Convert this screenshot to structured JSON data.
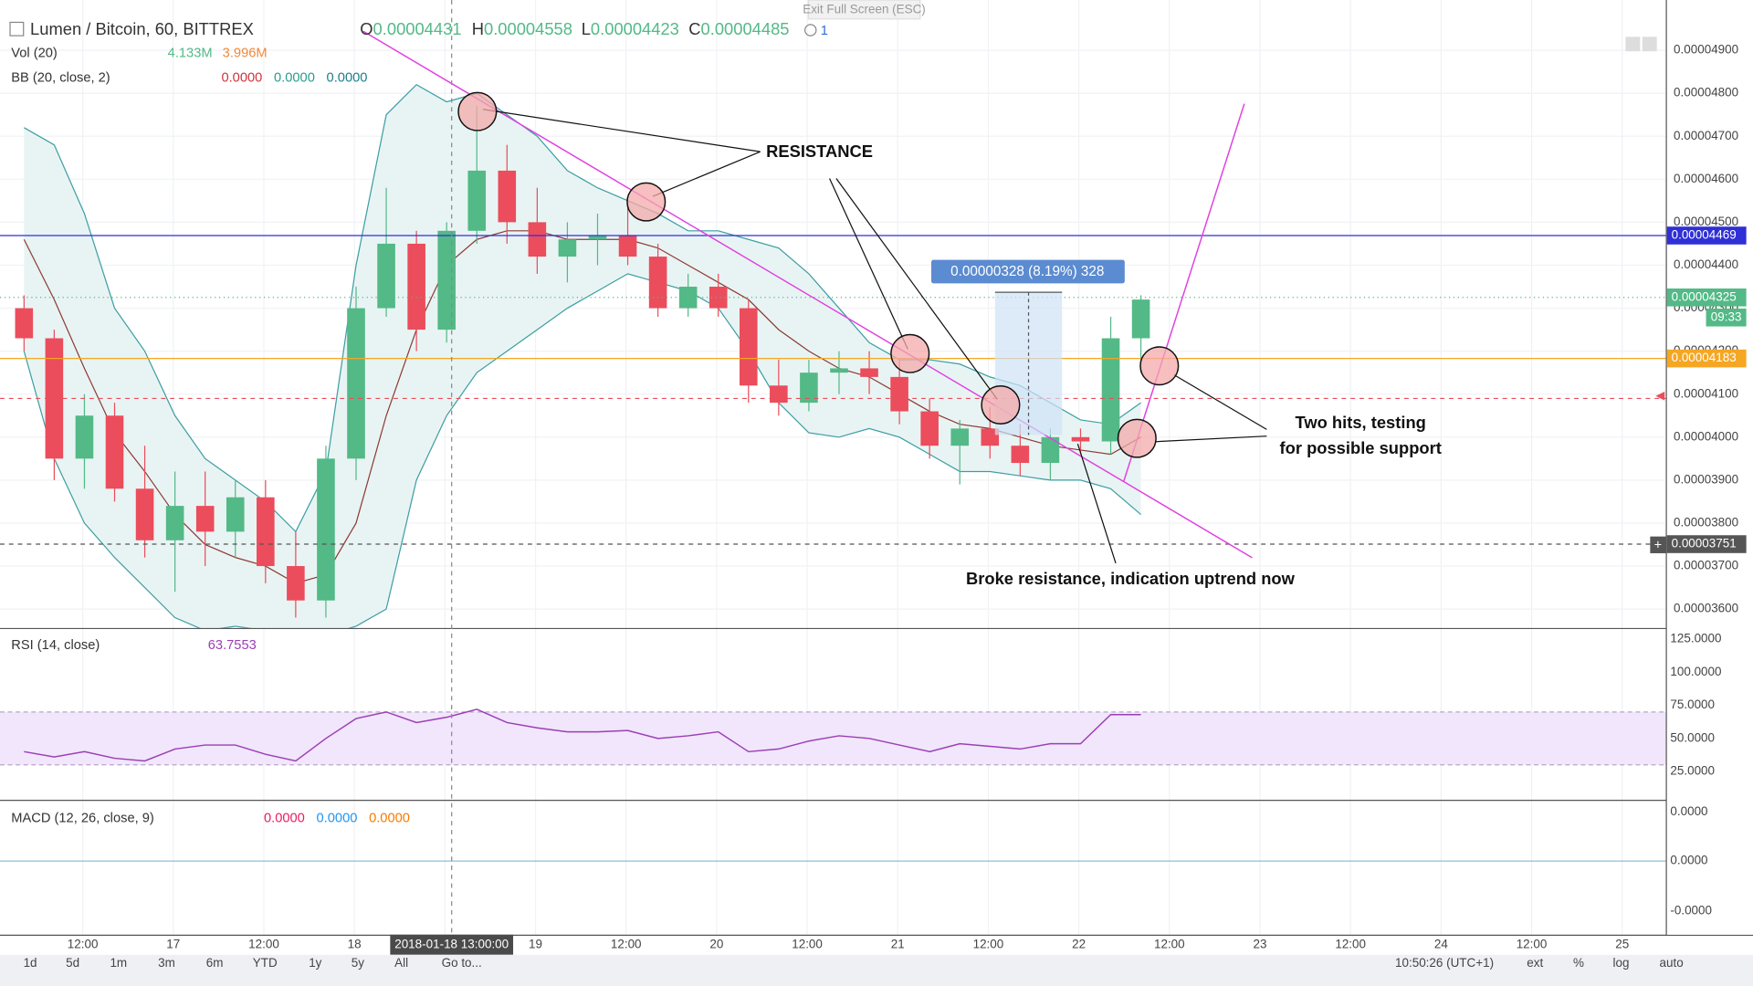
{
  "header": {
    "symbol": "Lumen / Bitcoin, 60, BITTREX",
    "ohlc": [
      [
        "O",
        "0.00004431"
      ],
      [
        "H",
        "0.00004558"
      ],
      [
        "L",
        "0.00004423"
      ],
      [
        "C",
        "0.00004485"
      ]
    ],
    "alert_count": "1",
    "exit_fullscreen": "Exit Full Screen (ESC)"
  },
  "indicators": {
    "vol": {
      "name": "Vol (20)",
      "values": [
        "4.133M",
        "3.996M"
      ]
    },
    "bb": {
      "name": "BB (20, close, 2)",
      "values": [
        "0.0000",
        "0.0000",
        "0.0000"
      ]
    },
    "rsi": {
      "name": "RSI (14, close)",
      "value": "63.7553"
    },
    "macd": {
      "name": "MACD (12, 26, close, 9)",
      "values": [
        "0.0000",
        "0.0000",
        "0.0000"
      ],
      "ticks": [
        "0.0000",
        "0.0000",
        "-0.0000"
      ]
    }
  },
  "chart_data": [
    {
      "type": "candlestick",
      "up_color": "#53b987",
      "down_color": "#eb4d5c",
      "candles": [
        [
          4.3e-05,
          4.33e-05,
          4.2e-05,
          4.23e-05
        ],
        [
          4.23e-05,
          4.25e-05,
          3.9e-05,
          3.95e-05
        ],
        [
          3.95e-05,
          4.1e-05,
          3.88e-05,
          4.05e-05
        ],
        [
          4.05e-05,
          4.08e-05,
          3.85e-05,
          3.88e-05
        ],
        [
          3.88e-05,
          3.98e-05,
          3.72e-05,
          3.76e-05
        ],
        [
          3.76e-05,
          3.92e-05,
          3.64e-05,
          3.84e-05
        ],
        [
          3.84e-05,
          3.92e-05,
          3.7e-05,
          3.78e-05
        ],
        [
          3.78e-05,
          3.9e-05,
          3.72e-05,
          3.86e-05
        ],
        [
          3.86e-05,
          3.9e-05,
          3.66e-05,
          3.7e-05
        ],
        [
          3.7e-05,
          3.78e-05,
          3.58e-05,
          3.62e-05
        ],
        [
          3.62e-05,
          3.98e-05,
          3.58e-05,
          3.95e-05
        ],
        [
          3.95e-05,
          4.35e-05,
          3.9e-05,
          4.3e-05
        ],
        [
          4.3e-05,
          4.58e-05,
          4.28e-05,
          4.45e-05
        ],
        [
          4.45e-05,
          4.48e-05,
          4.2e-05,
          4.25e-05
        ],
        [
          4.25e-05,
          4.5e-05,
          4.22e-05,
          4.48e-05
        ],
        [
          4.48e-05,
          4.77e-05,
          4.45e-05,
          4.62e-05
        ],
        [
          4.62e-05,
          4.68e-05,
          4.45e-05,
          4.5e-05
        ],
        [
          4.5e-05,
          4.58e-05,
          4.38e-05,
          4.42e-05
        ],
        [
          4.42e-05,
          4.5e-05,
          4.36e-05,
          4.46e-05
        ],
        [
          4.46e-05,
          4.52e-05,
          4.4e-05,
          4.47e-05
        ],
        [
          4.47e-05,
          4.55e-05,
          4.4e-05,
          4.42e-05
        ],
        [
          4.42e-05,
          4.45e-05,
          4.28e-05,
          4.3e-05
        ],
        [
          4.3e-05,
          4.38e-05,
          4.28e-05,
          4.35e-05
        ],
        [
          4.35e-05,
          4.38e-05,
          4.28e-05,
          4.3e-05
        ],
        [
          4.3e-05,
          4.32e-05,
          4.08e-05,
          4.12e-05
        ],
        [
          4.12e-05,
          4.18e-05,
          4.05e-05,
          4.08e-05
        ],
        [
          4.08e-05,
          4.18e-05,
          4.06e-05,
          4.15e-05
        ],
        [
          4.15e-05,
          4.2e-05,
          4.1e-05,
          4.16e-05
        ],
        [
          4.16e-05,
          4.2e-05,
          4.1e-05,
          4.14e-05
        ],
        [
          4.14e-05,
          4.18e-05,
          4.03e-05,
          4.06e-05
        ],
        [
          4.06e-05,
          4.09e-05,
          3.95e-05,
          3.98e-05
        ],
        [
          3.98e-05,
          4.04e-05,
          3.89e-05,
          4.02e-05
        ],
        [
          4.02e-05,
          4.07e-05,
          3.95e-05,
          3.98e-05
        ],
        [
          3.98e-05,
          4.03e-05,
          3.91e-05,
          3.94e-05
        ],
        [
          3.94e-05,
          4.02e-05,
          3.9e-05,
          4e-05
        ],
        [
          4e-05,
          4.02e-05,
          3.96e-05,
          3.99e-05
        ],
        [
          3.99e-05,
          4.28e-05,
          3.96e-05,
          4.23e-05
        ],
        [
          4.23e-05,
          4.33e-05,
          4.15e-05,
          4.32e-05
        ]
      ],
      "bb_upper": [
        4.72e-05,
        4.68e-05,
        4.52e-05,
        4.3e-05,
        4.2e-05,
        4.05e-05,
        3.95e-05,
        3.9e-05,
        3.85e-05,
        3.78e-05,
        3.92e-05,
        4.4e-05,
        4.75e-05,
        4.82e-05,
        4.78e-05,
        4.8e-05,
        4.75e-05,
        4.7e-05,
        4.62e-05,
        4.58e-05,
        4.55e-05,
        4.52e-05,
        4.48e-05,
        4.48e-05,
        4.46e-05,
        4.44e-05,
        4.38e-05,
        4.3e-05,
        4.22e-05,
        4.18e-05,
        4.18e-05,
        4.17e-05,
        4.14e-05,
        4.12e-05,
        4.08e-05,
        4.04e-05,
        4.03e-05,
        4.08e-05
      ],
      "bb_lower": [
        4.2e-05,
        3.95e-05,
        3.8e-05,
        3.72e-05,
        3.65e-05,
        3.58e-05,
        3.55e-05,
        3.56e-05,
        3.55e-05,
        3.54e-05,
        3.54e-05,
        3.56e-05,
        3.6e-05,
        3.9e-05,
        4.05e-05,
        4.15e-05,
        4.2e-05,
        4.25e-05,
        4.3e-05,
        4.34e-05,
        4.38e-05,
        4.36e-05,
        4.34e-05,
        4.3e-05,
        4.2e-05,
        4.08e-05,
        4.01e-05,
        4e-05,
        4.02e-05,
        4e-05,
        3.96e-05,
        3.92e-05,
        3.92e-05,
        3.91e-05,
        3.9e-05,
        3.9e-05,
        3.88e-05,
        3.82e-05
      ],
      "bb_mid": [
        4.46e-05,
        4.32e-05,
        4.16e-05,
        4.01e-05,
        3.92e-05,
        3.82e-05,
        3.75e-05,
        3.72e-05,
        3.7e-05,
        3.66e-05,
        3.68e-05,
        3.8e-05,
        4.05e-05,
        4.25e-05,
        4.4e-05,
        4.46e-05,
        4.48e-05,
        4.48e-05,
        4.46e-05,
        4.46e-05,
        4.46e-05,
        4.44e-05,
        4.4e-05,
        4.36e-05,
        4.32e-05,
        4.25e-05,
        4.2e-05,
        4.16e-05,
        4.14e-05,
        4.1e-05,
        4.06e-05,
        4.03e-05,
        4.02e-05,
        4e-05,
        3.98e-05,
        3.97e-05,
        3.96e-05,
        4e-05
      ],
      "band_color": "#3d9ea3",
      "band_fill": "#e8f4f3",
      "mid_color": "#8d3b36",
      "ylim": [
        3.556e-05,
        5.017e-05
      ],
      "yticks": [
        {
          "value": 3.6e-05,
          "label": "0.00003600"
        },
        {
          "value": 3.7e-05,
          "label": "0.00003700"
        },
        {
          "value": 3.8e-05,
          "label": "0.00003800"
        },
        {
          "value": 3.9e-05,
          "label": "0.00003900"
        },
        {
          "value": 4e-05,
          "label": "0.00004000"
        },
        {
          "value": 4.1e-05,
          "label": "0.00004100"
        },
        {
          "value": 4.2e-05,
          "label": "0.00004200"
        },
        {
          "value": 4.3e-05,
          "label": "0.00004300"
        },
        {
          "value": 4.4e-05,
          "label": "0.00004400"
        },
        {
          "value": 4.5e-05,
          "label": "0.00004500"
        },
        {
          "value": 4.6e-05,
          "label": "0.00004600"
        },
        {
          "value": 4.7e-05,
          "label": "0.00004700"
        },
        {
          "value": 4.8e-05,
          "label": "0.00004800"
        },
        {
          "value": 4.9e-05,
          "label": "0.00004900"
        }
      ],
      "price_lines": [
        {
          "value": 4.469e-05,
          "label": "0.00004469",
          "color": "#2f2fd6",
          "style": "solid"
        },
        {
          "value": 4.325e-05,
          "label": "0.00004325",
          "color": "#53b987",
          "style": "dotted"
        },
        {
          "value": 4.183e-05,
          "label": "0.00004183",
          "color": "#f5a623",
          "style": "solid"
        },
        {
          "value": 4.09e-05,
          "color": "#eb4d5c",
          "style": "dashed"
        },
        {
          "value": 3.751e-05,
          "label": "0.00003751",
          "color": "#555555",
          "style": "dashed"
        }
      ],
      "countdown": "09:33",
      "measure": "0.00000328 (8.19%) 328",
      "annotations": [
        "RESISTANCE",
        "Two hits, testing",
        "for possible support",
        "Broke resistance, indication uptrend now"
      ]
    },
    {
      "type": "line",
      "color": "#9b3fb5",
      "band": [
        30,
        70
      ],
      "values": [
        40,
        36,
        40,
        35,
        33,
        42,
        45,
        45,
        38,
        33,
        50,
        65,
        70,
        62,
        66,
        72,
        62,
        58,
        55,
        55,
        56,
        50,
        52,
        55,
        40,
        42,
        48,
        52,
        50,
        45,
        40,
        46,
        44,
        42,
        46,
        46,
        68,
        68
      ],
      "ylim": [
        2.8,
        131
      ],
      "yticks": [
        {
          "value": 25,
          "label": "25.0000"
        },
        {
          "value": 50,
          "label": "50.0000"
        },
        {
          "value": 75,
          "label": "75.0000"
        },
        {
          "value": 100,
          "label": "100.0000"
        },
        {
          "value": 125,
          "label": "125.0000"
        }
      ]
    }
  ],
  "time_axis": {
    "labels": [
      "12:00",
      "17",
      "12:00",
      "18",
      null,
      "19",
      "12:00",
      "20",
      "12:00",
      "21",
      "12:00",
      "22",
      "12:00",
      "23",
      "12:00",
      "24",
      "12:00",
      "25"
    ],
    "crosshair": "2018-01-18 13:00:00"
  },
  "toolbar": {
    "left": [
      "1d",
      "5d",
      "1m",
      "3m",
      "6m",
      "YTD",
      "1y",
      "5y",
      "All",
      "Go to..."
    ],
    "clock": "10:50:26 (UTC+1)",
    "right": [
      "ext",
      "%",
      "log",
      "auto"
    ]
  }
}
